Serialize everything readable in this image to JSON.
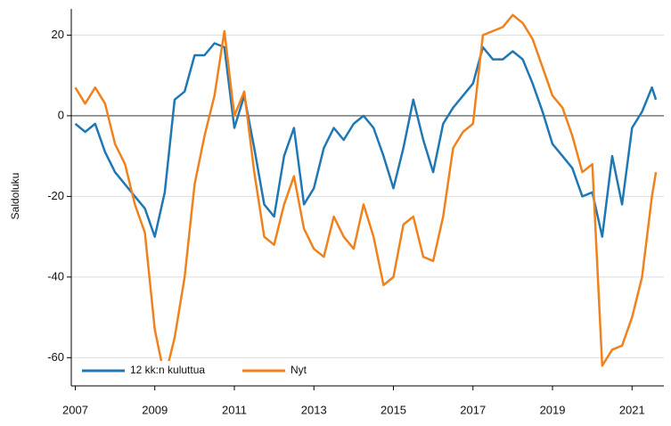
{
  "chart_data": {
    "type": "line",
    "ylabel": "Saldoluku",
    "x": [
      2007.0,
      2007.25,
      2007.5,
      2007.75,
      2008.0,
      2008.25,
      2008.5,
      2008.75,
      2009.0,
      2009.25,
      2009.5,
      2009.75,
      2010.0,
      2010.25,
      2010.5,
      2010.75,
      2011.0,
      2011.25,
      2011.5,
      2011.75,
      2012.0,
      2012.25,
      2012.5,
      2012.75,
      2013.0,
      2013.25,
      2013.5,
      2013.75,
      2014.0,
      2014.25,
      2014.5,
      2014.75,
      2015.0,
      2015.25,
      2015.5,
      2015.75,
      2016.0,
      2016.25,
      2016.5,
      2016.75,
      2017.0,
      2017.25,
      2017.5,
      2017.75,
      2018.0,
      2018.25,
      2018.5,
      2018.75,
      2019.0,
      2019.25,
      2019.5,
      2019.75,
      2020.0,
      2020.25,
      2020.5,
      2020.75,
      2021.0,
      2021.25,
      2021.5,
      2021.6
    ],
    "series": [
      {
        "name": "12 kk:n kuluttua",
        "color": "#1f78b4",
        "values": [
          -2,
          -4,
          -2,
          -9,
          -14,
          -17,
          -20,
          -23,
          -30,
          -19,
          4,
          6,
          15,
          15,
          18,
          17,
          -3,
          5,
          -8,
          -22,
          -25,
          -10,
          -3,
          -22,
          -18,
          -8,
          -3,
          -6,
          -2,
          0,
          -3,
          -10,
          -18,
          -8,
          4,
          -6,
          -14,
          -2,
          2,
          5,
          8,
          17,
          14,
          14,
          16,
          14,
          8,
          1,
          -7,
          -10,
          -13,
          -20,
          -19,
          -30,
          -10,
          -22,
          -3,
          1,
          7,
          4
        ]
      },
      {
        "name": "Nyt",
        "color": "#f0821e",
        "values": [
          7,
          3,
          7,
          3,
          -7,
          -12,
          -22,
          -29,
          -53,
          -65,
          -55,
          -40,
          -17,
          -5,
          5,
          21,
          0,
          6,
          -14,
          -30,
          -32,
          -22,
          -15,
          -28,
          -33,
          -35,
          -25,
          -30,
          -33,
          -22,
          -30,
          -42,
          -40,
          -27,
          -25,
          -35,
          -36,
          -25,
          -8,
          -4,
          -2,
          20,
          21,
          22,
          25,
          23,
          19,
          12,
          5,
          2,
          -5,
          -14,
          -12,
          -62,
          -58,
          -57,
          -50,
          -40,
          -20,
          -14
        ]
      }
    ],
    "xlim": [
      2006.9,
      2021.8
    ],
    "xticks": [
      2007,
      2009,
      2011,
      2013,
      2015,
      2017,
      2019,
      2021
    ],
    "ylim": [
      -67,
      26.5
    ],
    "yticks": [
      -60,
      -40,
      -20,
      0,
      20
    ],
    "grid": true,
    "legend": "lower left"
  }
}
